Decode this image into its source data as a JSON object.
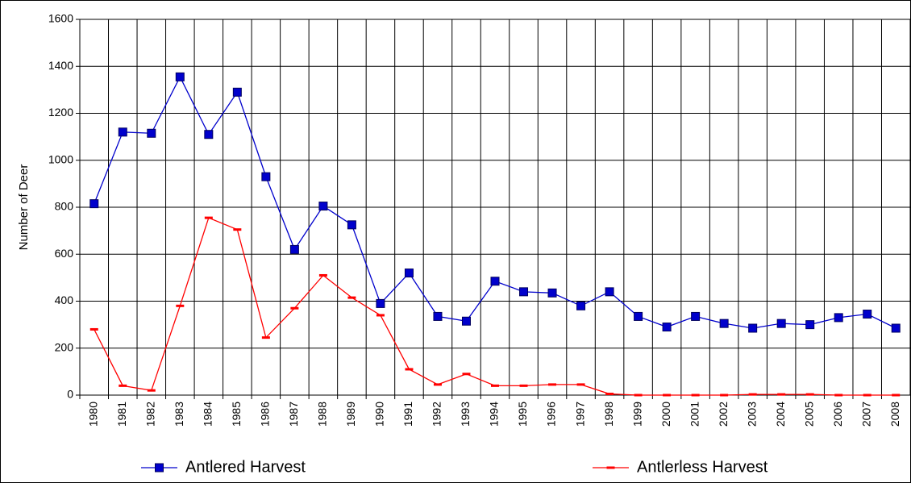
{
  "chart_data": {
    "type": "line",
    "y_label": "Number of Deer",
    "categories": [
      "1980",
      "1981",
      "1982",
      "1983",
      "1984",
      "1985",
      "1986",
      "1987",
      "1988",
      "1989",
      "1990",
      "1991",
      "1992",
      "1993",
      "1994",
      "1995",
      "1996",
      "1997",
      "1998",
      "1999",
      "2000",
      "2001",
      "2002",
      "2003",
      "2004",
      "2005",
      "2006",
      "2007",
      "2008"
    ],
    "series": [
      {
        "name": "Antlered Harvest",
        "color": "#0000cc",
        "marker": "square",
        "values": [
          815,
          1120,
          1115,
          1355,
          1110,
          1290,
          930,
          620,
          805,
          725,
          390,
          520,
          335,
          315,
          485,
          440,
          435,
          380,
          440,
          335,
          290,
          335,
          305,
          285,
          305,
          300,
          330,
          345,
          285
        ]
      },
      {
        "name": "Antlerless Harvest",
        "color": "#ff0000",
        "marker": "dash",
        "values": [
          280,
          40,
          20,
          380,
          755,
          705,
          245,
          370,
          510,
          415,
          340,
          110,
          45,
          90,
          40,
          40,
          45,
          45,
          5,
          0,
          0,
          0,
          0,
          3,
          3,
          3,
          0,
          0,
          0
        ]
      }
    ],
    "ylim": [
      0,
      1600
    ],
    "yticks": [
      0,
      200,
      400,
      600,
      800,
      1000,
      1200,
      1400,
      1600
    ],
    "grid": true
  }
}
